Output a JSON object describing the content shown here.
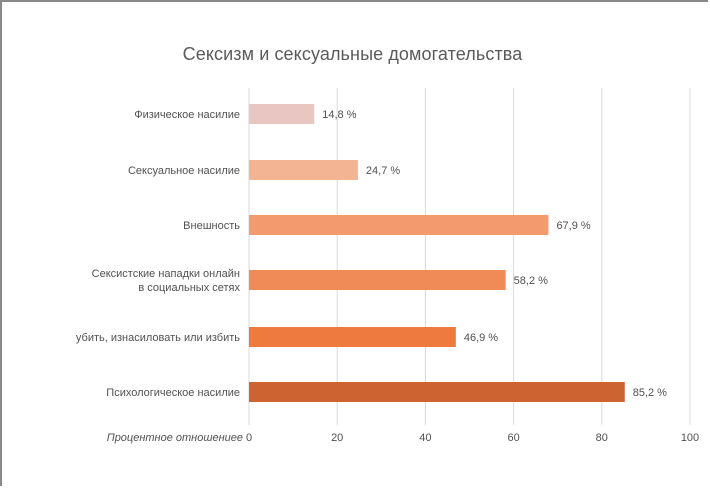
{
  "chart_data": {
    "type": "bar",
    "orientation": "horizontal",
    "title": "Сексизм и сексуальные домогательства",
    "xlabel": "Процентное отношениее",
    "ylabel": "",
    "xlim": [
      0,
      100
    ],
    "xticks": [
      0,
      20,
      40,
      60,
      80,
      100
    ],
    "grid": true,
    "categories": [
      [
        "Физическое насилие"
      ],
      [
        "Сексуальное насилие"
      ],
      [
        "Внешность"
      ],
      [
        "Сексистские нападки онлайн",
        "в социальных сетях"
      ],
      [
        "убить, изнасиловать или избить"
      ],
      [
        "Психологическое насилие"
      ]
    ],
    "values": [
      14.8,
      24.7,
      67.9,
      58.2,
      46.9,
      85.2
    ],
    "value_labels": [
      "14,8 %",
      "24,7 %",
      "67,9 %",
      "58,2 %",
      "46,9 %",
      "85,2 %"
    ],
    "colors": [
      "#e9c6c1",
      "#f2b493",
      "#f39a6f",
      "#f08a56",
      "#ee7a3d",
      "#cc6330"
    ]
  }
}
